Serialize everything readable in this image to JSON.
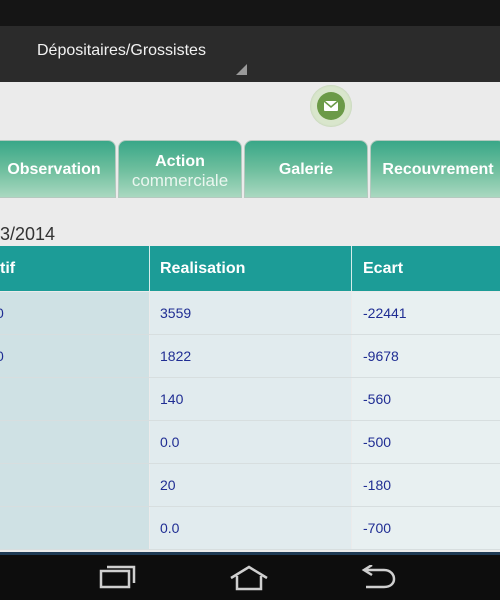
{
  "action_bar": {
    "spinner_value": "Dépositaires/Grossistes"
  },
  "icons": {
    "mail": "mail-icon",
    "recents": "recents-icon",
    "home": "home-icon",
    "back": "back-icon"
  },
  "tabs": [
    {
      "label": "Observation"
    },
    {
      "label_line1": "Action",
      "label_line2": "commerciale"
    },
    {
      "label": "Galerie"
    },
    {
      "label": "Recouvrement"
    }
  ],
  "date_partial": "3/2014",
  "table": {
    "headers": [
      "tif",
      "Realisation",
      "Ecart"
    ],
    "rows": [
      {
        "objectif": "0",
        "realisation": "3559",
        "ecart": "-22441"
      },
      {
        "objectif": "0",
        "realisation": "1822",
        "ecart": "-9678"
      },
      {
        "objectif": "",
        "realisation": "140",
        "ecart": "-560"
      },
      {
        "objectif": "",
        "realisation": "0.0",
        "ecart": "-500"
      },
      {
        "objectif": "",
        "realisation": "20",
        "ecart": "-180"
      },
      {
        "objectif": "",
        "realisation": "0.0",
        "ecart": "-700"
      }
    ]
  },
  "colors": {
    "header": "#1c9c97",
    "text": "#1f2d93",
    "tab_top": "#39a788"
  }
}
